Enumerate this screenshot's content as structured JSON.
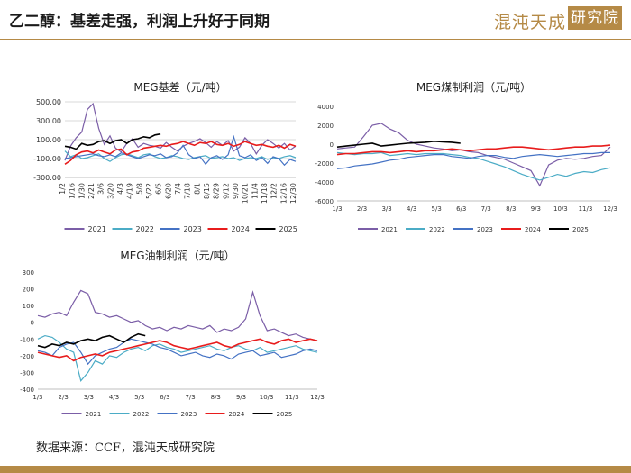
{
  "page": {
    "title": "乙二醇：基差走强，利润上升好于同期",
    "logo_text": "混沌天成",
    "logo_box_text": "研究院",
    "source": "数据来源：CCF，混沌天成研究院"
  },
  "colors": {
    "brand": "#b58a46",
    "2021": "#7b5ea7",
    "2022": "#4bacc6",
    "2023": "#4472c4",
    "2024": "#e81c1c",
    "2025": "#000000"
  },
  "chart_data": [
    {
      "type": "line",
      "title": "MEG基差（元/吨）",
      "xlabel": "",
      "ylabel": "",
      "ylim": [
        -300,
        500
      ],
      "yticks": [
        "500.00",
        "300.00",
        "100.00",
        "-100.00",
        "-300.00"
      ],
      "xticks": [
        "1/2",
        "1/16",
        "1/30",
        "2/21",
        "3/6",
        "3/20",
        "4/3",
        "4/19",
        "5/8",
        "5/22",
        "6/5",
        "6/20",
        "7/4",
        "7/18",
        "8/1",
        "8/15",
        "8/29",
        "9/12",
        "9/30",
        "10/21",
        "11/4",
        "11/18",
        "12/2",
        "12/16",
        "12/30"
      ],
      "grid": true,
      "legend": "bottom",
      "series": [
        {
          "name": "2021",
          "values": [
            -120,
            30,
            120,
            180,
            420,
            480,
            220,
            50,
            140,
            10,
            -30,
            60,
            110,
            20,
            60,
            40,
            30,
            10,
            70,
            20,
            -20,
            30,
            60,
            80,
            110,
            70,
            20,
            80,
            40,
            90,
            -20,
            20,
            120,
            60,
            -50,
            40,
            100,
            60,
            10,
            60,
            -10,
            30
          ]
        },
        {
          "name": "2022",
          "values": [
            -20,
            -80,
            -60,
            -100,
            -90,
            -70,
            -50,
            -100,
            -130,
            -90,
            -60,
            -50,
            -70,
            -90,
            -60,
            -50,
            -80,
            -100,
            -90,
            -70,
            -80,
            -100,
            -110,
            -90,
            -80,
            -70,
            -100,
            -90,
            -80,
            -100,
            -90,
            -120,
            -100,
            -90,
            -100,
            -80,
            -110,
            -90,
            -100,
            -80,
            -70,
            -90
          ]
        },
        {
          "name": "2023",
          "values": [
            -100,
            -90,
            -80,
            -70,
            -60,
            -50,
            -70,
            -80,
            -60,
            -80,
            -40,
            -60,
            -80,
            -100,
            -80,
            -60,
            -70,
            -50,
            -90,
            -80,
            -40,
            40,
            -60,
            -100,
            -80,
            -160,
            -90,
            -70,
            -110,
            -60,
            130,
            -70,
            -90,
            -60,
            -120,
            -90,
            -150,
            -80,
            -100,
            -170,
            -110,
            -130
          ]
        },
        {
          "name": "2024",
          "values": [
            -160,
            -120,
            -60,
            -30,
            -20,
            -40,
            -10,
            -30,
            -50,
            -10,
            0,
            -60,
            -30,
            -20,
            10,
            20,
            30,
            40,
            30,
            50,
            60,
            80,
            60,
            40,
            70,
            60,
            80,
            50,
            40,
            60,
            30,
            50,
            80,
            60,
            40,
            50,
            30,
            20,
            40,
            10,
            50,
            30
          ]
        },
        {
          "name": "2025",
          "values": [
            30,
            20,
            0,
            60,
            40,
            50,
            80,
            90,
            60,
            90,
            100,
            60,
            100,
            110,
            130,
            120,
            150,
            160
          ]
        }
      ]
    },
    {
      "type": "line",
      "title": "MEG煤制利润（元/吨）",
      "xlabel": "",
      "ylabel": "",
      "ylim": [
        -6000,
        4000
      ],
      "yticks": [
        "4000",
        "2000",
        "0",
        "-2000",
        "-4000",
        "-6000"
      ],
      "xticks": [
        "1/3",
        "2/3",
        "3/3",
        "4/3",
        "5/3",
        "6/3",
        "7/3",
        "8/3",
        "9/3",
        "10/3",
        "11/3",
        "12/3"
      ],
      "grid": false,
      "legend": "bottom",
      "series": [
        {
          "name": "2021",
          "values": [
            -500,
            -400,
            -300,
            800,
            2000,
            2200,
            1600,
            1200,
            400,
            0,
            -200,
            -400,
            -500,
            -700,
            -600,
            -800,
            -900,
            -1200,
            -1400,
            -1600,
            -2000,
            -2400,
            -2800,
            -4400,
            -2200,
            -1700,
            -1500,
            -1600,
            -1500,
            -1300,
            -1200,
            -300
          ]
        },
        {
          "name": "2022",
          "values": [
            -900,
            -1000,
            -1100,
            -1000,
            -1000,
            -900,
            -1200,
            -1100,
            -1000,
            -1100,
            -1000,
            -1000,
            -1000,
            -1100,
            -1200,
            -1400,
            -1500,
            -1800,
            -2100,
            -2400,
            -2800,
            -3200,
            -3500,
            -3800,
            -3500,
            -3200,
            -3400,
            -3100,
            -2900,
            -3000,
            -2700,
            -2500
          ]
        },
        {
          "name": "2023",
          "values": [
            -2600,
            -2500,
            -2300,
            -2200,
            -2100,
            -1900,
            -1700,
            -1600,
            -1400,
            -1300,
            -1200,
            -1100,
            -1100,
            -1300,
            -1400,
            -1500,
            -1300,
            -1200,
            -1200,
            -1400,
            -1500,
            -1300,
            -1200,
            -1100,
            -1200,
            -1300,
            -1200,
            -1100,
            -1000,
            -1000,
            -900,
            -900
          ]
        },
        {
          "name": "2024",
          "values": [
            -1100,
            -1000,
            -1000,
            -900,
            -800,
            -800,
            -900,
            -800,
            -700,
            -800,
            -700,
            -700,
            -600,
            -500,
            -600,
            -700,
            -600,
            -500,
            -500,
            -400,
            -300,
            -300,
            -400,
            -500,
            -600,
            -500,
            -400,
            -300,
            -300,
            -200,
            -200,
            -100
          ]
        },
        {
          "name": "2025",
          "values": [
            -300,
            -200,
            -100,
            0,
            100,
            -200,
            -100,
            0,
            100,
            150,
            200,
            300,
            250,
            200,
            100
          ]
        }
      ]
    },
    {
      "type": "line",
      "title": "MEG油制利润（元/吨）",
      "xlabel": "",
      "ylabel": "",
      "ylim": [
        -400,
        300
      ],
      "yticks": [
        "300",
        "200",
        "100",
        "0",
        "-100",
        "-200",
        "-300",
        "-400"
      ],
      "xticks": [
        "1/3",
        "2/3",
        "3/3",
        "4/3",
        "5/3",
        "6/3",
        "7/3",
        "8/3",
        "9/3",
        "10/3",
        "11/3",
        "12/3"
      ],
      "grid": false,
      "legend": "bottom",
      "series": [
        {
          "name": "2021",
          "values": [
            40,
            30,
            50,
            60,
            40,
            120,
            190,
            170,
            60,
            50,
            30,
            40,
            20,
            0,
            10,
            -20,
            -40,
            -30,
            -50,
            -30,
            -40,
            -20,
            -30,
            -40,
            -20,
            -60,
            -40,
            -50,
            -30,
            20,
            180,
            40,
            -50,
            -40,
            -60,
            -80,
            -70,
            -90,
            -100,
            -110
          ]
        },
        {
          "name": "2022",
          "values": [
            -100,
            -80,
            -90,
            -120,
            -160,
            -180,
            -350,
            -300,
            -230,
            -250,
            -200,
            -210,
            -180,
            -160,
            -150,
            -170,
            -140,
            -130,
            -150,
            -160,
            -180,
            -170,
            -160,
            -150,
            -140,
            -160,
            -170,
            -150,
            -140,
            -160,
            -170,
            -150,
            -180,
            -170,
            -160,
            -150,
            -140,
            -160,
            -170,
            -180
          ]
        },
        {
          "name": "2023",
          "values": [
            -170,
            -180,
            -200,
            -150,
            -130,
            -120,
            -180,
            -250,
            -200,
            -180,
            -160,
            -150,
            -120,
            -100,
            -110,
            -120,
            -130,
            -150,
            -160,
            -180,
            -200,
            -190,
            -180,
            -200,
            -210,
            -190,
            -200,
            -220,
            -190,
            -180,
            -170,
            -200,
            -190,
            -180,
            -210,
            -200,
            -190,
            -170,
            -160,
            -170
          ]
        },
        {
          "name": "2024",
          "values": [
            -180,
            -190,
            -200,
            -210,
            -200,
            -230,
            -210,
            -200,
            -190,
            -200,
            -180,
            -170,
            -160,
            -150,
            -140,
            -130,
            -120,
            -110,
            -120,
            -140,
            -150,
            -160,
            -150,
            -140,
            -130,
            -120,
            -140,
            -150,
            -130,
            -120,
            -110,
            -100,
            -120,
            -130,
            -110,
            -100,
            -120,
            -110,
            -100,
            -110
          ]
        },
        {
          "name": "2025",
          "values": [
            -140,
            -150,
            -130,
            -140,
            -120,
            -130,
            -110,
            -100,
            -110,
            -90,
            -80,
            -100,
            -120,
            -90,
            -70,
            -80
          ]
        }
      ]
    }
  ]
}
